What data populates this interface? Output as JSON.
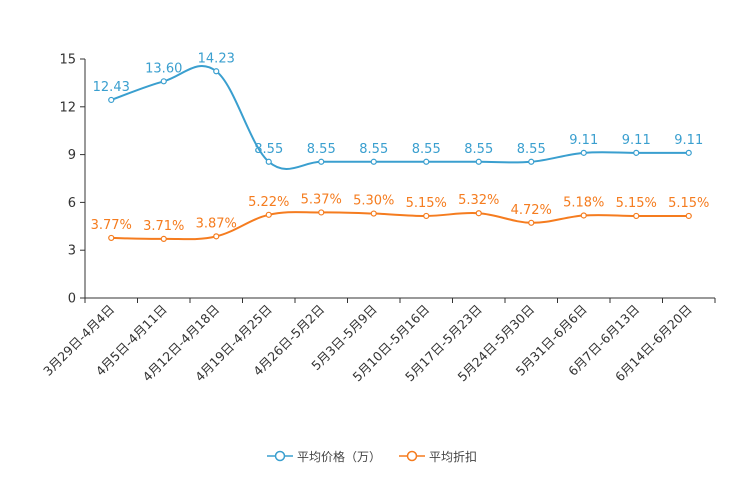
{
  "chart_data": {
    "type": "line",
    "categories": [
      "3月29日-4月4日",
      "4月5日-4月11日",
      "4月12日-4月18日",
      "4月19日-4月25日",
      "4月26日-5月2日",
      "5月3日-5月9日",
      "5月10日-5月16日",
      "5月17日-5月23日",
      "5月24日-5月30日",
      "5月31日-6月6日",
      "6月7日-6月13日",
      "6月14日-6月20日"
    ],
    "ylim": [
      0,
      15
    ],
    "yticks": [
      "0",
      "3",
      "6",
      "9",
      "12",
      "15"
    ],
    "series": [
      {
        "name": "平均价格（万）",
        "color": "#3a9fcf",
        "values": [
          12.43,
          13.6,
          14.23,
          8.55,
          8.55,
          8.55,
          8.55,
          8.55,
          8.55,
          9.11,
          9.11,
          9.11
        ],
        "labels": [
          "12.43",
          "13.60",
          "14.23",
          "8.55",
          "8.55",
          "8.55",
          "8.55",
          "8.55",
          "8.55",
          "9.11",
          "9.11",
          "9.11"
        ]
      },
      {
        "name": "平均折扣",
        "color": "#f57c1f",
        "values": [
          3.77,
          3.71,
          3.87,
          5.22,
          5.37,
          5.3,
          5.15,
          5.32,
          4.72,
          5.18,
          5.15,
          5.15
        ],
        "labels": [
          "3.77%",
          "3.71%",
          "3.87%",
          "5.22%",
          "5.37%",
          "5.30%",
          "5.15%",
          "5.32%",
          "4.72%",
          "5.18%",
          "5.15%",
          "5.15%"
        ]
      }
    ],
    "legend": {
      "position": "bottom"
    }
  }
}
